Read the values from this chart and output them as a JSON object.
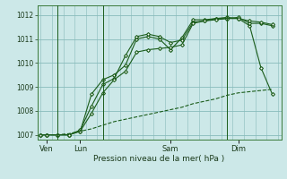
{
  "title": "",
  "xlabel": "Pression niveau de la mer( hPa )",
  "bg_color": "#cce8e8",
  "grid_color": "#88bbbb",
  "line_color": "#1a5c1a",
  "ylim": [
    1006.8,
    1012.4
  ],
  "yticks": [
    1007,
    1008,
    1009,
    1010,
    1011,
    1012
  ],
  "xlim": [
    -0.3,
    21.3
  ],
  "day_labels": [
    "Ven",
    "Lun",
    "Sam",
    "Dim"
  ],
  "day_positions": [
    0.5,
    3.5,
    11.5,
    17.5
  ],
  "vline_x": [
    1.5,
    5.5,
    16.5
  ],
  "lines": [
    {
      "x": [
        0,
        0.5,
        1.5,
        2.5,
        3.5,
        4.5,
        5.5,
        6.5,
        7.5,
        8.5,
        9.5,
        10.5,
        11.5,
        12.5,
        13.5,
        14.5,
        15.5,
        16.5,
        17.5,
        18.5,
        19.5,
        20.5
      ],
      "y": [
        1007.0,
        1007.0,
        1007.0,
        1007.0,
        1007.15,
        1008.7,
        1009.3,
        1009.5,
        1009.9,
        1011.0,
        1011.1,
        1011.0,
        1010.55,
        1011.05,
        1011.8,
        1011.8,
        1011.85,
        1011.9,
        1011.85,
        1011.55,
        1009.8,
        1008.7
      ],
      "dashed": false,
      "marker": "D",
      "markersize": 2.0
    },
    {
      "x": [
        0,
        0.5,
        1.5,
        2.5,
        3.5,
        4.5,
        5.5,
        6.5,
        7.5,
        8.5,
        9.5,
        10.5,
        11.5,
        12.5,
        13.5,
        14.5,
        15.5,
        16.5,
        17.5,
        18.5,
        19.5,
        20.5
      ],
      "y": [
        1007.0,
        1007.0,
        1007.0,
        1007.0,
        1007.2,
        1008.2,
        1009.1,
        1009.35,
        1010.3,
        1011.1,
        1011.2,
        1011.1,
        1010.85,
        1010.95,
        1011.7,
        1011.75,
        1011.85,
        1011.85,
        1011.9,
        1011.65,
        1011.65,
        1011.55
      ],
      "dashed": false,
      "marker": "D",
      "markersize": 2.0
    },
    {
      "x": [
        0,
        0.5,
        1.5,
        2.5,
        3.5,
        4.5,
        5.5,
        6.5,
        7.5,
        8.5,
        9.5,
        10.5,
        11.5,
        12.5,
        13.5,
        14.5,
        15.5,
        16.5,
        17.5,
        18.5,
        19.5,
        20.5
      ],
      "y": [
        1007.0,
        1007.0,
        1007.0,
        1007.0,
        1007.15,
        1007.9,
        1008.75,
        1009.3,
        1009.65,
        1010.45,
        1010.55,
        1010.6,
        1010.65,
        1010.75,
        1011.65,
        1011.75,
        1011.8,
        1011.85,
        1011.85,
        1011.75,
        1011.7,
        1011.6
      ],
      "dashed": false,
      "marker": "D",
      "markersize": 2.0
    },
    {
      "x": [
        0,
        0.5,
        1.5,
        2.5,
        3.5,
        4.5,
        5.5,
        6.5,
        7.5,
        8.5,
        9.5,
        10.5,
        11.5,
        12.5,
        13.5,
        14.5,
        15.5,
        16.5,
        17.5,
        18.5,
        19.5,
        20.5
      ],
      "y": [
        1007.0,
        1007.0,
        1007.0,
        1007.05,
        1007.15,
        1007.25,
        1007.4,
        1007.55,
        1007.65,
        1007.75,
        1007.85,
        1007.95,
        1008.05,
        1008.15,
        1008.3,
        1008.4,
        1008.5,
        1008.65,
        1008.75,
        1008.8,
        1008.85,
        1008.9
      ],
      "dashed": true,
      "marker": "None",
      "markersize": 0
    }
  ]
}
